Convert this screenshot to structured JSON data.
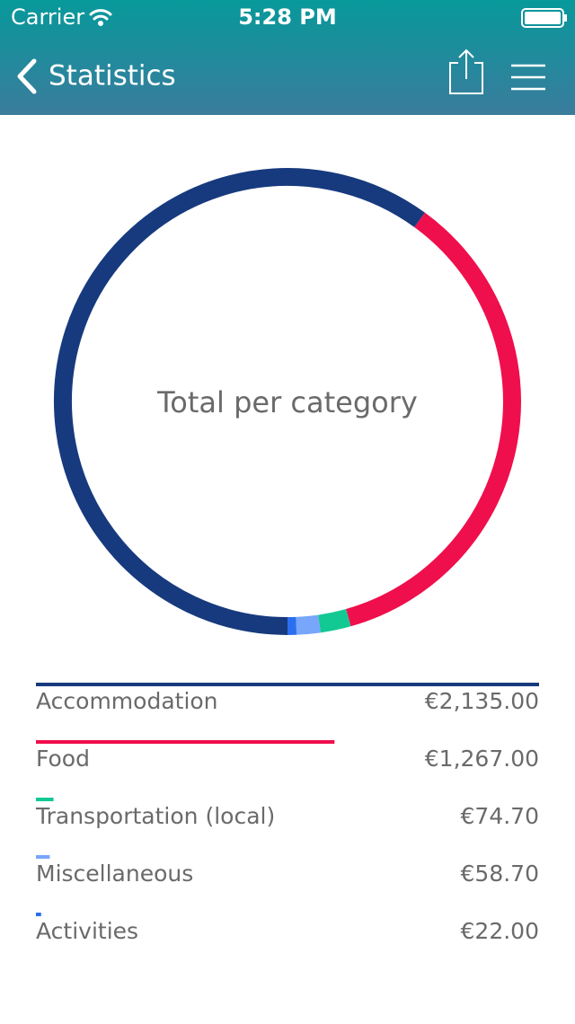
{
  "status_bar": {
    "carrier": "Carrier",
    "time": "5:28 PM"
  },
  "nav": {
    "title": "Statistics"
  },
  "chart_data": {
    "type": "donut",
    "title": "Total per category",
    "categories": [
      "Accommodation",
      "Food",
      "Transportation (local)",
      "Miscellaneous",
      "Activities"
    ],
    "values": [
      2135,
      1267,
      74.7,
      58.7,
      22
    ],
    "value_labels": [
      "€2,135.00",
      "€1,267.00",
      "€74.70",
      "€58.70",
      "€22.00"
    ],
    "colors": [
      "#173a7e",
      "#ef0f4c",
      "#12c994",
      "#77a6fb",
      "#2b6ef0"
    ]
  }
}
